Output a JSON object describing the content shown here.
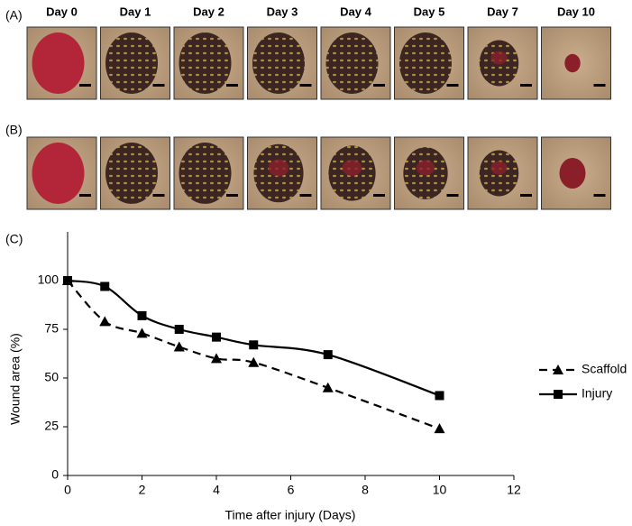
{
  "figure": {
    "panel_labels": [
      "(A)",
      "(B)",
      "(C)"
    ],
    "day_labels": [
      "Day 0",
      "Day 1",
      "Day 2",
      "Day 3",
      "Day 4",
      "Day 5",
      "Day 7",
      "Day 10"
    ]
  },
  "chart_data": {
    "type": "line",
    "x_label": "Time after injury (Days)",
    "y_label": "Wound area (%)",
    "x": [
      0,
      1,
      2,
      3,
      4,
      5,
      7,
      10
    ],
    "series": [
      {
        "name": "Scaffold",
        "color": "#000000",
        "dash": true,
        "marker": "triangle",
        "values": [
          100,
          79,
          73,
          66,
          60,
          58,
          45,
          24
        ]
      },
      {
        "name": "Injury",
        "color": "#000000",
        "dash": false,
        "marker": "square",
        "values": [
          100,
          97,
          82,
          75,
          71,
          67,
          62,
          41
        ]
      }
    ],
    "xlim": [
      0,
      12
    ],
    "xticks": [
      0,
      2,
      4,
      6,
      8,
      10,
      12
    ],
    "ylim": [
      0,
      125
    ],
    "yticks": [
      0,
      25,
      50,
      75,
      100
    ],
    "legend": "right"
  }
}
